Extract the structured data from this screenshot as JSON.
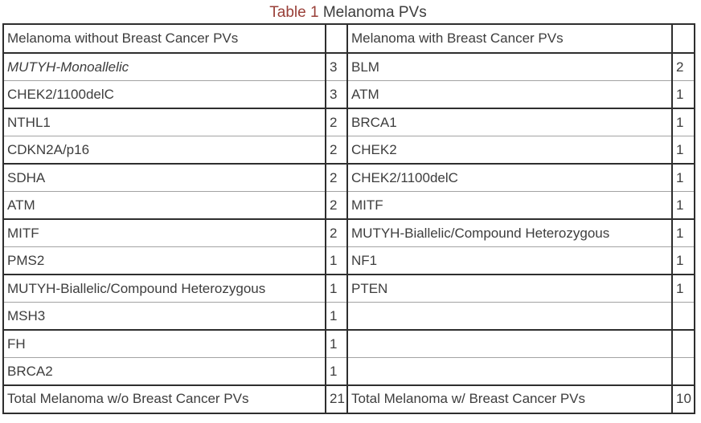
{
  "caption": {
    "label": "Table 1",
    "title": "Melanoma PVs"
  },
  "table": {
    "headers": {
      "left": "Melanoma without Breast Cancer PVs",
      "left_count": "",
      "right": "Melanoma with Breast Cancer PVs",
      "right_count": ""
    },
    "rows": [
      {
        "left_gene": "MUTYH-Monoallelic",
        "left_count": "3",
        "right_gene": "BLM",
        "right_count": "2",
        "left_italic": true
      },
      {
        "left_gene": "CHEK2/1100delC",
        "left_count": "3",
        "right_gene": "ATM",
        "right_count": "1"
      },
      {
        "left_gene": "NTHL1",
        "left_count": "2",
        "right_gene": "BRCA1",
        "right_count": "1"
      },
      {
        "left_gene": "CDKN2A/p16",
        "left_count": "2",
        "right_gene": "CHEK2",
        "right_count": "1"
      },
      {
        "left_gene": "SDHA",
        "left_count": "2",
        "right_gene": "CHEK2/1100delC",
        "right_count": "1"
      },
      {
        "left_gene": "ATM",
        "left_count": "2",
        "right_gene": "MITF",
        "right_count": "1"
      },
      {
        "left_gene": "MITF",
        "left_count": "2",
        "right_gene": "MUTYH-Biallelic/Compound Heterozygous",
        "right_count": "1"
      },
      {
        "left_gene": "PMS2",
        "left_count": "1",
        "right_gene": "NF1",
        "right_count": "1"
      },
      {
        "left_gene": "MUTYH-Biallelic/Compound Heterozygous",
        "left_count": "1",
        "right_gene": "PTEN",
        "right_count": "1"
      },
      {
        "left_gene": "MSH3",
        "left_count": "1",
        "right_gene": "",
        "right_count": ""
      },
      {
        "left_gene": "FH",
        "left_count": "1",
        "right_gene": "",
        "right_count": ""
      },
      {
        "left_gene": "BRCA2",
        "left_count": "1",
        "right_gene": "",
        "right_count": ""
      },
      {
        "left_gene": "Total Melanoma w/o Breast Cancer PVs",
        "left_count": "21",
        "right_gene": "Total Melanoma w/ Breast Cancer PVs",
        "right_count": "10",
        "is_total": true
      }
    ]
  },
  "colors": {
    "border_dark": "#2e2e2e",
    "border_light": "#a3a3a3",
    "text": "#3d3d3d",
    "caption_label": "#993f38",
    "background": "#ffffff"
  }
}
